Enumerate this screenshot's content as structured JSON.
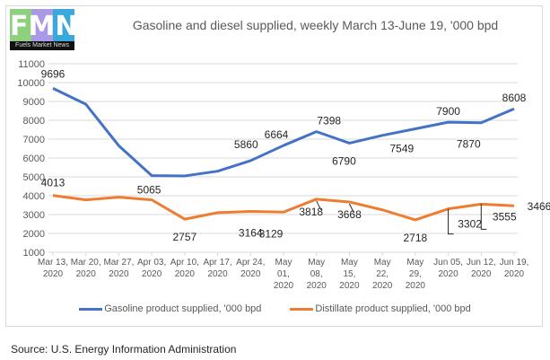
{
  "logo": {
    "letters": [
      "F",
      "M",
      "N"
    ],
    "tagline": "Fuels Market News",
    "colors": [
      "#8fd07f",
      "#a99ae6",
      "#38a8dd"
    ]
  },
  "source": "Source: U.S. Energy Information Administration",
  "chart_data": {
    "type": "line",
    "title": "Gasoline and diesel supplied, weekly March 13-June 19, '000 bpd",
    "xlabel": "",
    "ylabel": "",
    "ylim": [
      1000,
      11000
    ],
    "yticks": [
      1000,
      2000,
      3000,
      4000,
      5000,
      6000,
      7000,
      8000,
      9000,
      10000,
      11000
    ],
    "grid": true,
    "legend_position": "bottom",
    "categories": [
      [
        "Mar 13,",
        "2020"
      ],
      [
        "Mar 20,",
        "2020"
      ],
      [
        "Mar 27,",
        "2020"
      ],
      [
        "Apr 03,",
        "2020"
      ],
      [
        "Apr 10,",
        "2020"
      ],
      [
        "Apr 17,",
        "2020"
      ],
      [
        "Apr 24,",
        "2020"
      ],
      [
        "May",
        "01,",
        "2020"
      ],
      [
        "May",
        "08,",
        "2020"
      ],
      [
        "May",
        "15,",
        "2020"
      ],
      [
        "May",
        "22,",
        "2020"
      ],
      [
        "May",
        "29,",
        "2020"
      ],
      [
        "Jun 05,",
        "2020"
      ],
      [
        "Jun 12,",
        "2020"
      ],
      [
        "Jun 19,",
        "2020"
      ]
    ],
    "series": [
      {
        "name": "Gasoline product supplied, '000 bpd",
        "color": "#4472c4",
        "values": [
          9696,
          8850,
          6650,
          5065,
          5050,
          5300,
          5860,
          6664,
          7398,
          6790,
          7200,
          7549,
          7900,
          7870,
          8608
        ],
        "labels": [
          "9696",
          null,
          null,
          "5065",
          null,
          null,
          "5860",
          "6664",
          "7398",
          "6790",
          null,
          "7549",
          "7900",
          "7870",
          "8608"
        ]
      },
      {
        "name": "Distillate product supplied, '000 bpd",
        "color": "#ed7d31",
        "values": [
          4013,
          3780,
          3920,
          3780,
          2757,
          3100,
          3164,
          3129,
          3818,
          3668,
          3250,
          2718,
          3302,
          3555,
          3466
        ],
        "labels": [
          "4013",
          null,
          null,
          null,
          "2757",
          null,
          "3164",
          "3129",
          "3818",
          "3668",
          null,
          "2718",
          "3302",
          "3555",
          "3466"
        ]
      }
    ]
  }
}
